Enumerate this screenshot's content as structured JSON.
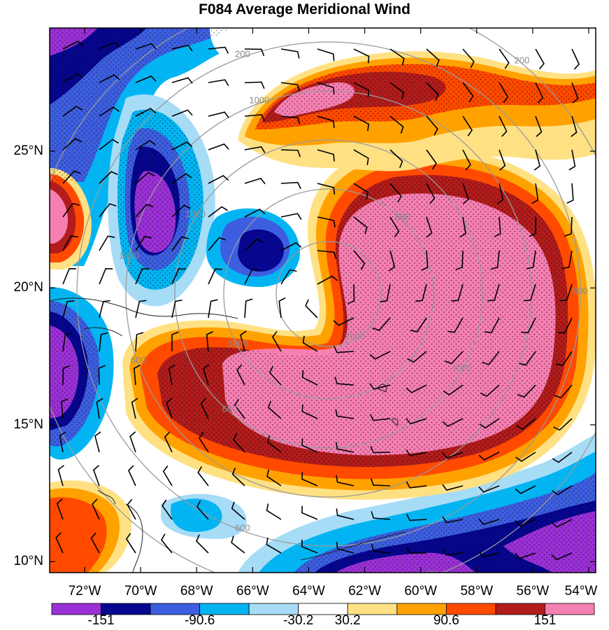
{
  "title": "F084 Average Meridional Wind",
  "lat_labels": [
    {
      "text": "25°N",
      "lat": 25
    },
    {
      "text": "20°N",
      "lat": 20
    },
    {
      "text": "15°N",
      "lat": 15
    },
    {
      "text": "10°N",
      "lat": 10
    }
  ],
  "lon_labels": [
    {
      "text": "72°W",
      "lon": -72
    },
    {
      "text": "70°W",
      "lon": -70
    },
    {
      "text": "68°W",
      "lon": -68
    },
    {
      "text": "66°W",
      "lon": -66
    },
    {
      "text": "64°W",
      "lon": -64
    },
    {
      "text": "62°W",
      "lon": -62
    },
    {
      "text": "60°W",
      "lon": -60
    },
    {
      "text": "58°W",
      "lon": -58
    },
    {
      "text": "56°W",
      "lon": -56
    },
    {
      "text": "54°W",
      "lon": -54
    }
  ],
  "colorbar": {
    "colors": [
      "#9b30d6",
      "#06068f",
      "#3d5ee0",
      "#02b5f2",
      "#a7dcf7",
      "#ffffff",
      "#ffe183",
      "#ffa200",
      "#ff4a00",
      "#b21c1c",
      "#f67fb2"
    ],
    "labels": [
      {
        "text": "-151",
        "boundary": 1
      },
      {
        "text": "-90.6",
        "boundary": 3
      },
      {
        "text": "-30.2",
        "boundary": 5
      },
      {
        "text": "30.2",
        "boundary": 6
      },
      {
        "text": "90.6",
        "boundary": 8
      },
      {
        "text": "151",
        "boundary": 10
      }
    ]
  },
  "contour_labels": [
    "1000",
    "1000",
    "1000",
    "1000",
    "1000",
    "1000",
    "600",
    "600",
    "600",
    "600",
    "600",
    "400",
    "200",
    "200"
  ]
}
